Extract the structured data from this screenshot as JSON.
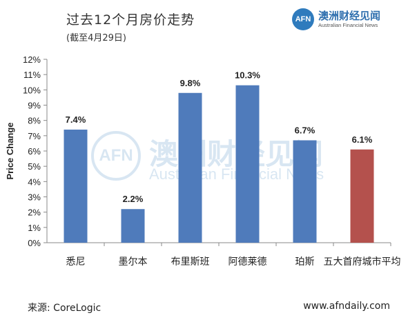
{
  "header": {
    "title": "过去12个月房价走势",
    "subtitle": "(截至4月29日)"
  },
  "logo": {
    "mark": "AFN",
    "name_cn": "澳洲财经见闻",
    "name_en": "Australian Financial News"
  },
  "watermark": {
    "mark": "AFN",
    "name_cn": "澳洲财经见闻",
    "name_en": "Australian Financial News"
  },
  "footer": {
    "source": "来源: CoreLogic",
    "website": "www.afndaily.com"
  },
  "chart_data": {
    "type": "bar",
    "title": "",
    "xlabel": "",
    "ylabel": "Price Change",
    "categories": [
      "悉尼",
      "墨尔本",
      "布里斯班",
      "阿德莱德",
      "珀斯",
      "五大首府城市平均"
    ],
    "values": [
      7.4,
      2.2,
      9.8,
      10.3,
      6.7,
      6.1
    ],
    "data_labels": [
      "7.4%",
      "2.2%",
      "9.8%",
      "10.3%",
      "6.7%",
      "6.1%"
    ],
    "colors": [
      "#4f7bbb",
      "#4f7bbb",
      "#4f7bbb",
      "#4f7bbb",
      "#4f7bbb",
      "#b4514d"
    ],
    "ylim": [
      0,
      12
    ],
    "yticks": [
      "0%",
      "1%",
      "2%",
      "3%",
      "4%",
      "5%",
      "6%",
      "7%",
      "8%",
      "9%",
      "10%",
      "11%",
      "12%"
    ],
    "grid": false,
    "legend": "none"
  }
}
